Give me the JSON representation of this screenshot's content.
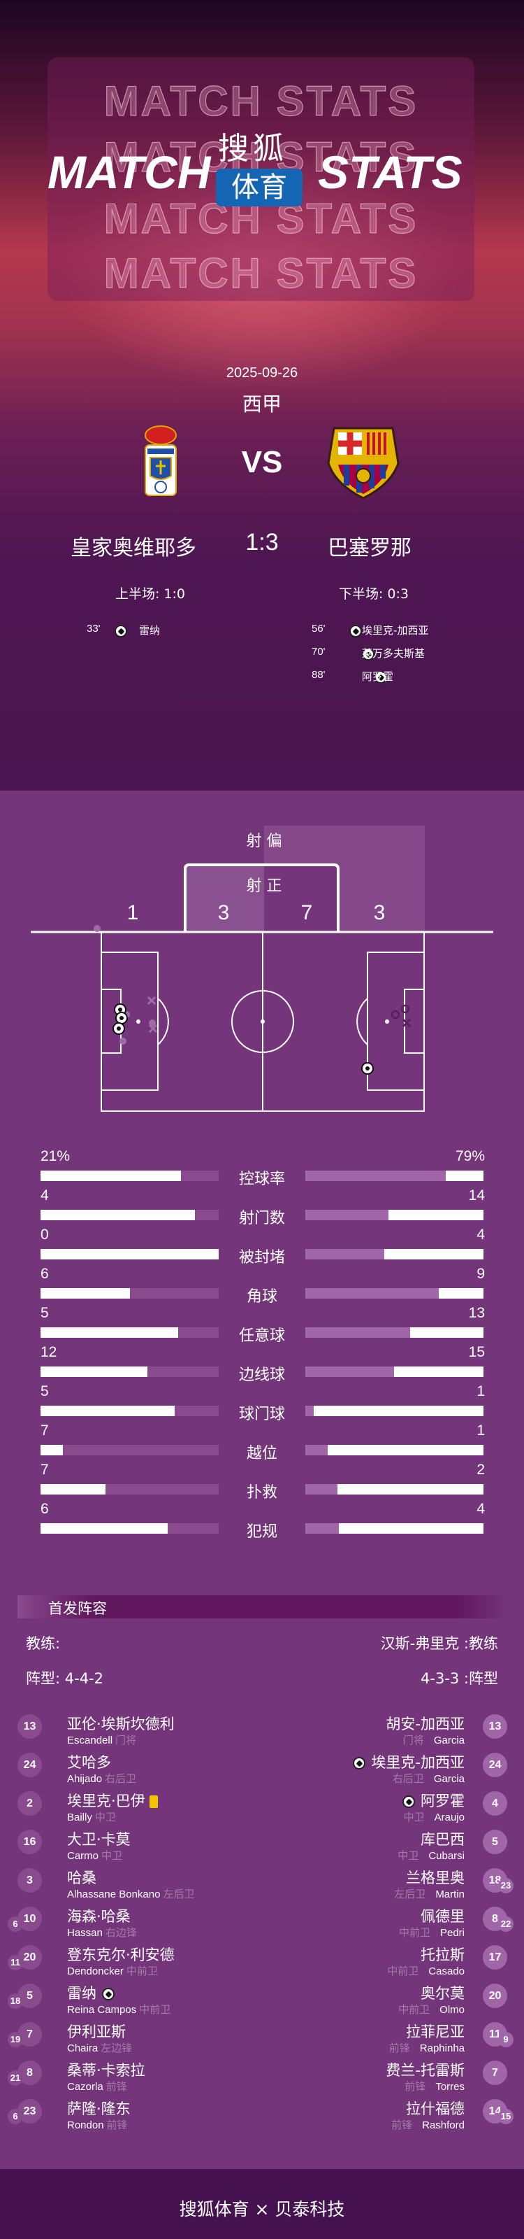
{
  "header": {
    "outline_text": "MATCH STATS",
    "title_left": "MATCH",
    "title_right": "STATS",
    "brand_top": "搜狐",
    "brand_box": "体育",
    "brand_color": "#1565b5"
  },
  "match": {
    "date": "2025-09-26",
    "league": "西甲",
    "vs": "VS",
    "home": "皇家奥维耶多",
    "away": "巴塞罗那",
    "score": "1:3",
    "first_half": "上半场: 1:0",
    "second_half": "下半场: 0:3",
    "home_goals": [
      {
        "minute": "33'",
        "player": "雷纳"
      }
    ],
    "away_goals": [
      {
        "minute": "56'",
        "player": "埃里克-加西亚"
      },
      {
        "minute": "70'",
        "player": "莱万多夫斯基"
      },
      {
        "minute": "88'",
        "player": "阿罗霍"
      }
    ]
  },
  "shots": {
    "off_target_label": "射 偏",
    "on_target_label": "射 正",
    "home_off": "1",
    "home_on": "3",
    "away_on": "7",
    "away_off": "3"
  },
  "stats": [
    {
      "label": "控球率",
      "home": "21%",
      "away": "79%",
      "home_fill": 0.79,
      "away_fill": 0.79
    },
    {
      "label": "射门数",
      "home": "4",
      "away": "14",
      "home_fill": 0.867,
      "away_fill": 0.465
    },
    {
      "label": "被封堵",
      "home": "0",
      "away": "4",
      "home_fill": 1.0,
      "away_fill": 0.443
    },
    {
      "label": "角球",
      "home": "6",
      "away": "9",
      "home_fill": 0.5,
      "away_fill": 0.749
    },
    {
      "label": "任意球",
      "home": "5",
      "away": "13",
      "home_fill": 0.773,
      "away_fill": 0.589
    },
    {
      "label": "边线球",
      "home": "12",
      "away": "15",
      "home_fill": 0.6,
      "away_fill": 0.497
    },
    {
      "label": "球门球",
      "home": "5",
      "away": "1",
      "home_fill": 0.752,
      "away_fill": 0.049
    },
    {
      "label": "越位",
      "home": "7",
      "away": "1",
      "home_fill": 0.126,
      "away_fill": 0.126
    },
    {
      "label": "扑救",
      "home": "7",
      "away": "2",
      "home_fill": 0.366,
      "away_fill": 0.18
    },
    {
      "label": "犯规",
      "home": "6",
      "away": "4",
      "home_fill": 0.715,
      "away_fill": 0.19
    }
  ],
  "lineup": {
    "title": "首发阵容",
    "home_coach": "教练:",
    "away_coach": "汉斯-弗里克 :教练",
    "home_formation": "阵型: 4-4-2",
    "away_formation": "4-3-3 :阵型",
    "home": [
      {
        "no": "13",
        "cn": "亚伦·埃斯坎德利",
        "en": "Escandell",
        "pos": "门将"
      },
      {
        "no": "24",
        "cn": "艾哈多",
        "en": "Ahijado",
        "pos": "右后卫"
      },
      {
        "no": "2",
        "cn": "埃里克·巴伊",
        "en": "Bailly",
        "pos": "中卫",
        "yellow": true
      },
      {
        "no": "16",
        "cn": "大卫·卡莫",
        "en": "Carmo",
        "pos": "中卫"
      },
      {
        "no": "3",
        "cn": "哈桑",
        "en": "Alhassane Bonkano",
        "pos": "左后卫"
      },
      {
        "no": "10",
        "cn": "海森·哈桑",
        "en": "Hassan",
        "pos": "右边锋",
        "sub": "6"
      },
      {
        "no": "20",
        "cn": "登东克尔·利安德",
        "en": "Dendoncker",
        "pos": "中前卫",
        "sub": "11"
      },
      {
        "no": "5",
        "cn": "雷纳",
        "en": "Reina Campos",
        "pos": "中前卫",
        "sub": "18",
        "goal": true
      },
      {
        "no": "7",
        "cn": "伊利亚斯",
        "en": "Chaira",
        "pos": "左边锋",
        "sub": "19"
      },
      {
        "no": "8",
        "cn": "桑蒂·卡索拉",
        "en": "Cazorla",
        "pos": "前锋",
        "sub": "21"
      },
      {
        "no": "23",
        "cn": "萨隆·隆东",
        "en": "Rondon",
        "pos": "前锋",
        "sub": "6"
      }
    ],
    "away": [
      {
        "no": "13",
        "cn": "胡安-加西亚",
        "en": "Garcia",
        "pos": "门将"
      },
      {
        "no": "24",
        "cn": "埃里克-加西亚",
        "en": "Garcia",
        "pos": "右后卫",
        "goal": true
      },
      {
        "no": "4",
        "cn": "阿罗霍",
        "en": "Araujo",
        "pos": "中卫",
        "goal": true
      },
      {
        "no": "5",
        "cn": "库巴西",
        "en": "Cubarsi",
        "pos": "中卫"
      },
      {
        "no": "18",
        "cn": "兰格里奥",
        "en": "Martin",
        "pos": "左后卫",
        "sub": "23"
      },
      {
        "no": "8",
        "cn": "佩德里",
        "en": "Pedri",
        "pos": "中前卫",
        "sub": "22"
      },
      {
        "no": "17",
        "cn": "托拉斯",
        "en": "Casado",
        "pos": "中前卫"
      },
      {
        "no": "20",
        "cn": "奥尔莫",
        "en": "Olmo",
        "pos": "中前卫"
      },
      {
        "no": "11",
        "cn": "拉菲尼亚",
        "en": "Raphinha",
        "pos": "前锋",
        "sub": "9"
      },
      {
        "no": "7",
        "cn": "费兰-托雷斯",
        "en": "Torres",
        "pos": "前锋"
      },
      {
        "no": "14",
        "cn": "拉什福德",
        "en": "Rashford",
        "pos": "前锋",
        "sub": "15"
      }
    ]
  },
  "footer": {
    "text": "搜狐体育 × 贝泰科技"
  },
  "colors": {
    "background": "#74357a",
    "footer": "#45114f",
    "home_bar_track": "#8a4b8e",
    "away_bar_fill": "#a066a8",
    "yellow_card": "#f5c400"
  }
}
